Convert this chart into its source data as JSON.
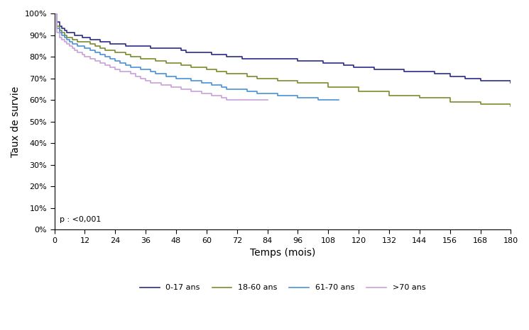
{
  "title": "",
  "xlabel": "Temps (mois)",
  "ylabel": "Taux de survie",
  "xlim": [
    0,
    180
  ],
  "ylim": [
    0,
    1.0
  ],
  "xticks": [
    0,
    12,
    24,
    36,
    48,
    60,
    72,
    84,
    96,
    108,
    120,
    132,
    144,
    156,
    168,
    180
  ],
  "yticks": [
    0,
    0.1,
    0.2,
    0.3,
    0.4,
    0.5,
    0.6,
    0.7,
    0.8,
    0.9,
    1.0
  ],
  "pvalue_text": "p : <0,001",
  "legend_entries": [
    "0-17 ans",
    "18-60 ans",
    "61-70 ans",
    ">70 ans"
  ],
  "colors": [
    "#2b2b8c",
    "#7a8c2b",
    "#4a90d9",
    "#c8a0d8"
  ],
  "background_color": "#ffffff",
  "series": {
    "group1_0_17": {
      "color": "#2b2b8c",
      "label": "0-17 ans",
      "x": [
        0,
        1,
        2,
        3,
        4,
        5,
        6,
        7,
        8,
        9,
        10,
        11,
        12,
        14,
        16,
        18,
        20,
        22,
        24,
        26,
        28,
        30,
        32,
        34,
        36,
        38,
        40,
        42,
        44,
        46,
        48,
        50,
        52,
        54,
        56,
        58,
        60,
        62,
        64,
        66,
        68,
        70,
        72,
        74,
        76,
        78,
        80,
        82,
        84,
        86,
        88,
        90,
        92,
        94,
        96,
        98,
        100,
        102,
        104,
        106,
        108,
        110,
        112,
        114,
        116,
        118,
        120,
        126,
        132,
        138,
        144,
        150,
        156,
        162,
        168,
        174,
        180
      ],
      "y": [
        1.0,
        0.96,
        0.94,
        0.93,
        0.92,
        0.91,
        0.91,
        0.91,
        0.9,
        0.9,
        0.9,
        0.89,
        0.89,
        0.88,
        0.88,
        0.87,
        0.87,
        0.86,
        0.86,
        0.86,
        0.85,
        0.85,
        0.85,
        0.85,
        0.85,
        0.84,
        0.84,
        0.84,
        0.84,
        0.84,
        0.84,
        0.83,
        0.82,
        0.82,
        0.82,
        0.82,
        0.82,
        0.81,
        0.81,
        0.81,
        0.8,
        0.8,
        0.8,
        0.79,
        0.79,
        0.79,
        0.79,
        0.79,
        0.79,
        0.79,
        0.79,
        0.79,
        0.79,
        0.79,
        0.78,
        0.78,
        0.78,
        0.78,
        0.78,
        0.77,
        0.77,
        0.77,
        0.77,
        0.76,
        0.76,
        0.75,
        0.75,
        0.74,
        0.74,
        0.73,
        0.73,
        0.72,
        0.71,
        0.7,
        0.69,
        0.69,
        0.68
      ]
    },
    "group2_18_60": {
      "color": "#7a8c2b",
      "label": "18-60 ans",
      "x": [
        0,
        1,
        2,
        3,
        4,
        5,
        6,
        7,
        8,
        9,
        10,
        11,
        12,
        14,
        16,
        18,
        20,
        22,
        24,
        26,
        28,
        30,
        32,
        34,
        36,
        38,
        40,
        42,
        44,
        46,
        48,
        50,
        52,
        54,
        56,
        58,
        60,
        62,
        64,
        66,
        68,
        70,
        72,
        76,
        80,
        84,
        88,
        96,
        108,
        120,
        132,
        144,
        156,
        168,
        180
      ],
      "y": [
        1.0,
        0.94,
        0.92,
        0.91,
        0.9,
        0.89,
        0.89,
        0.88,
        0.88,
        0.87,
        0.87,
        0.87,
        0.87,
        0.86,
        0.85,
        0.84,
        0.83,
        0.83,
        0.82,
        0.82,
        0.81,
        0.8,
        0.8,
        0.79,
        0.79,
        0.79,
        0.78,
        0.78,
        0.77,
        0.77,
        0.77,
        0.76,
        0.76,
        0.75,
        0.75,
        0.75,
        0.74,
        0.74,
        0.73,
        0.73,
        0.72,
        0.72,
        0.72,
        0.71,
        0.7,
        0.7,
        0.69,
        0.68,
        0.66,
        0.64,
        0.62,
        0.61,
        0.59,
        0.58,
        0.57
      ]
    },
    "group3_61_70": {
      "color": "#4a90d9",
      "label": "61-70 ans",
      "x": [
        0,
        1,
        2,
        3,
        4,
        5,
        6,
        7,
        8,
        9,
        10,
        11,
        12,
        14,
        16,
        18,
        20,
        22,
        24,
        26,
        28,
        30,
        32,
        34,
        36,
        38,
        40,
        42,
        44,
        46,
        48,
        50,
        52,
        54,
        56,
        58,
        60,
        62,
        64,
        66,
        68,
        70,
        72,
        76,
        80,
        84,
        88,
        92,
        96,
        100,
        104,
        108,
        112
      ],
      "y": [
        1.0,
        0.93,
        0.91,
        0.9,
        0.89,
        0.88,
        0.87,
        0.86,
        0.86,
        0.85,
        0.85,
        0.85,
        0.84,
        0.83,
        0.82,
        0.81,
        0.8,
        0.79,
        0.78,
        0.77,
        0.76,
        0.75,
        0.75,
        0.74,
        0.74,
        0.73,
        0.72,
        0.72,
        0.71,
        0.71,
        0.7,
        0.7,
        0.7,
        0.69,
        0.69,
        0.68,
        0.68,
        0.67,
        0.67,
        0.66,
        0.65,
        0.65,
        0.65,
        0.64,
        0.63,
        0.63,
        0.62,
        0.62,
        0.61,
        0.61,
        0.6,
        0.6,
        0.6
      ]
    },
    "group4_over70": {
      "color": "#c8a0d8",
      "label": ">70 ans",
      "x": [
        0,
        1,
        2,
        3,
        4,
        5,
        6,
        7,
        8,
        9,
        10,
        11,
        12,
        14,
        16,
        18,
        20,
        22,
        24,
        26,
        28,
        30,
        32,
        34,
        36,
        38,
        40,
        42,
        44,
        46,
        48,
        50,
        52,
        54,
        56,
        58,
        60,
        62,
        64,
        66,
        68,
        70,
        72,
        76,
        80,
        84
      ],
      "y": [
        1.0,
        0.91,
        0.89,
        0.88,
        0.87,
        0.86,
        0.85,
        0.84,
        0.83,
        0.82,
        0.82,
        0.81,
        0.8,
        0.79,
        0.78,
        0.77,
        0.76,
        0.75,
        0.74,
        0.73,
        0.73,
        0.72,
        0.71,
        0.7,
        0.69,
        0.68,
        0.68,
        0.67,
        0.67,
        0.66,
        0.66,
        0.65,
        0.65,
        0.64,
        0.64,
        0.63,
        0.63,
        0.62,
        0.62,
        0.61,
        0.6,
        0.6,
        0.6,
        0.6,
        0.6,
        0.6
      ]
    }
  }
}
